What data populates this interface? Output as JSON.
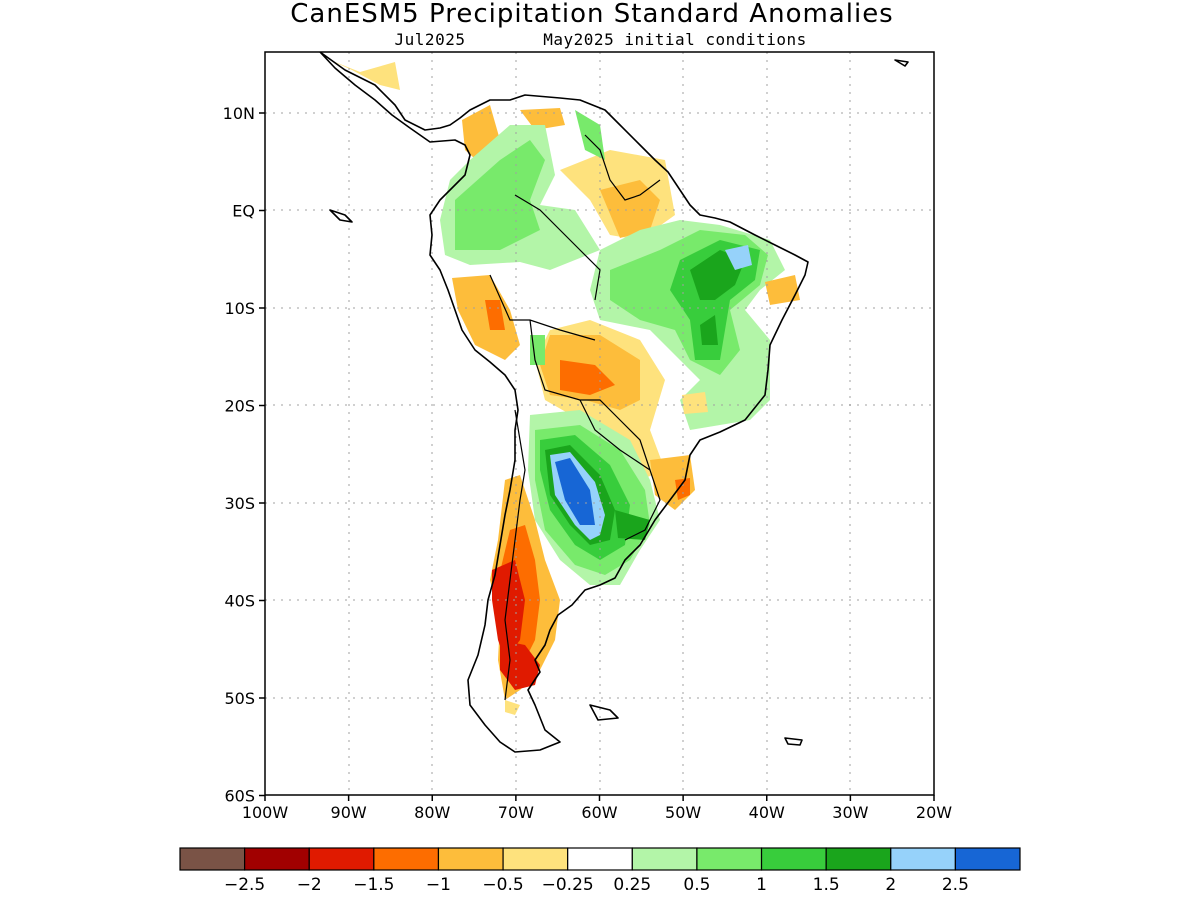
{
  "title": "CanESM5 Precipitation Standard Anomalies",
  "valid_month": "Jul2025",
  "init_label": "May2025 initial conditions",
  "lat_labels": [
    "10N",
    "EQ",
    "10S",
    "20S",
    "30S",
    "40S",
    "50S",
    "60S"
  ],
  "lon_labels": [
    "100W",
    "90W",
    "80W",
    "70W",
    "60W",
    "50W",
    "40W",
    "30W",
    "20W"
  ],
  "colorbar": {
    "colors": [
      "#7a5346",
      "#a10000",
      "#e01a00",
      "#fd6d00",
      "#fdbd3b",
      "#fee27d",
      "#ffffff",
      "#b3f5a8",
      "#78ea6b",
      "#38cd3c",
      "#1aa51c",
      "#96d2fa",
      "#1766d5"
    ],
    "labels": [
      "-2.5",
      "-2",
      "-1.5",
      "-1",
      "-0.5",
      "-0.25",
      "0.25",
      "0.5",
      "1",
      "1.5",
      "2",
      "2.5"
    ]
  },
  "map_colors": {
    "land_outline": "#000000",
    "grid": "#a0a0a0"
  }
}
